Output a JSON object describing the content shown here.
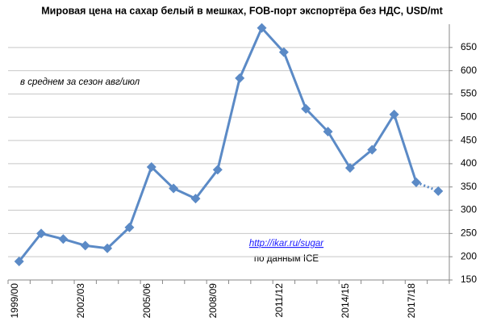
{
  "chart_data": {
    "type": "line",
    "title": "Мировая цена на сахар белый в мешках, FOB-порт экспортёра без НДС, USD/mt",
    "annotations": [
      "в среднем за сезон авг/июл",
      "http://ikar.ru/sugar",
      "по данным ICE"
    ],
    "categories": [
      "1999/00",
      null,
      null,
      "2002/03",
      null,
      null,
      "2005/06",
      null,
      null,
      "2008/09",
      null,
      null,
      "2011/12",
      null,
      null,
      "2014/15",
      null,
      null,
      "2017/18",
      null
    ],
    "series": [
      {
        "color": "#5b8ac6",
        "values": [
          190,
          250,
          238,
          224,
          218,
          263,
          393,
          347,
          325,
          387,
          584,
          692,
          640,
          518,
          469,
          391,
          430,
          506,
          360,
          341
        ]
      }
    ],
    "dotted_last_segments": 1,
    "ylim": [
      150,
      700
    ],
    "yticks": [
      150,
      200,
      250,
      300,
      350,
      400,
      450,
      500,
      550,
      600,
      650
    ],
    "y_axis_side": "right",
    "grid": true
  }
}
